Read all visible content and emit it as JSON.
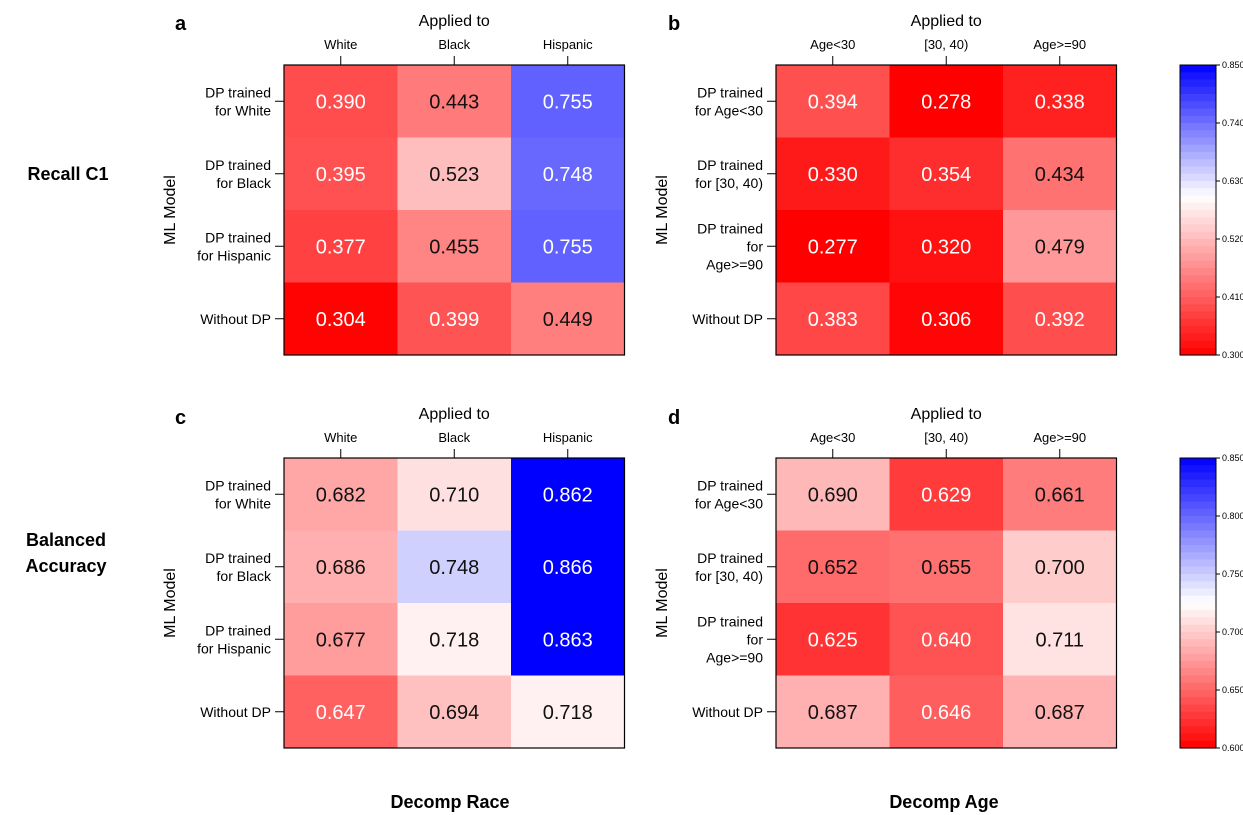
{
  "row_labels": {
    "recall": "Recall C1",
    "balanced": [
      "Balanced",
      "Accuracy"
    ]
  },
  "column_labels": {
    "race": "Decomp Race",
    "age": "Decomp Age"
  },
  "colors": {
    "low": "#ff0000",
    "mid": "#ffffff",
    "high": "#0000ff",
    "text_dark": "#111111",
    "text_light": "#ffffff"
  },
  "chart_data": [
    {
      "panel": "a",
      "type": "heatmap",
      "top_label": "Applied to",
      "ylabel": "ML Model",
      "columns": [
        "White",
        "Black",
        "Hispanic"
      ],
      "rows": [
        [
          "DP trained",
          "for White"
        ],
        [
          "DP trained",
          "for Black"
        ],
        [
          "DP trained",
          "for Hispanic"
        ],
        [
          "Without DP"
        ]
      ],
      "values": [
        [
          0.39,
          0.443,
          0.755
        ],
        [
          0.395,
          0.523,
          0.748
        ],
        [
          0.377,
          0.455,
          0.755
        ],
        [
          0.304,
          0.399,
          0.449
        ]
      ],
      "vmin": 0.3,
      "vmax": 0.85,
      "vcenter": 0.6,
      "colorbar_ticks": [
        "0.850",
        "0.740",
        "0.630",
        "0.520",
        "0.410",
        "0.300"
      ]
    },
    {
      "panel": "b",
      "type": "heatmap",
      "top_label": "Applied to",
      "ylabel": "ML Model",
      "columns": [
        "Age<30",
        "[30, 40)",
        "Age>=90"
      ],
      "rows": [
        [
          "DP trained",
          "for Age<30"
        ],
        [
          "DP trained",
          "for [30, 40)"
        ],
        [
          "DP trained",
          "for",
          "Age>=90"
        ],
        [
          "Without DP"
        ]
      ],
      "values": [
        [
          0.394,
          0.278,
          0.338
        ],
        [
          0.33,
          0.354,
          0.434
        ],
        [
          0.277,
          0.32,
          0.479
        ],
        [
          0.383,
          0.306,
          0.392
        ]
      ],
      "vmin": 0.3,
      "vmax": 0.85,
      "vcenter": 0.6,
      "colorbar_ticks": [
        "0.850",
        "0.740",
        "0.630",
        "0.520",
        "0.410",
        "0.300"
      ]
    },
    {
      "panel": "c",
      "type": "heatmap",
      "top_label": "Applied to",
      "ylabel": "ML Model",
      "columns": [
        "White",
        "Black",
        "Hispanic"
      ],
      "rows": [
        [
          "DP trained",
          "for White"
        ],
        [
          "DP trained",
          "for Black"
        ],
        [
          "DP trained",
          "for Hispanic"
        ],
        [
          "Without DP"
        ]
      ],
      "values": [
        [
          0.682,
          0.71,
          0.862
        ],
        [
          0.686,
          0.748,
          0.866
        ],
        [
          0.677,
          0.718,
          0.863
        ],
        [
          0.647,
          0.694,
          0.718
        ]
      ],
      "vmin": 0.6,
      "vmax": 0.85,
      "vcenter": 0.725,
      "colorbar_ticks": [
        "0.850",
        "0.800",
        "0.750",
        "0.700",
        "0.650",
        "0.600"
      ]
    },
    {
      "panel": "d",
      "type": "heatmap",
      "top_label": "Applied to",
      "ylabel": "ML Model",
      "columns": [
        "Age<30",
        "[30, 40)",
        "Age>=90"
      ],
      "rows": [
        [
          "DP trained",
          "for Age<30"
        ],
        [
          "DP trained",
          "for [30, 40)"
        ],
        [
          "DP trained",
          "for",
          "Age>=90"
        ],
        [
          "Without DP"
        ]
      ],
      "values": [
        [
          0.69,
          0.629,
          0.661
        ],
        [
          0.652,
          0.655,
          0.7
        ],
        [
          0.625,
          0.64,
          0.711
        ],
        [
          0.687,
          0.646,
          0.687
        ]
      ],
      "vmin": 0.6,
      "vmax": 0.85,
      "vcenter": 0.725,
      "colorbar_ticks": [
        "0.850",
        "0.800",
        "0.750",
        "0.700",
        "0.650",
        "0.600"
      ]
    }
  ]
}
